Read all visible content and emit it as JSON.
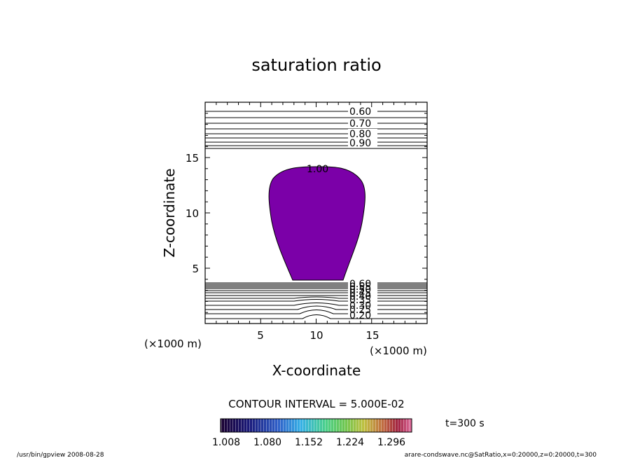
{
  "chart_data": {
    "type": "contour",
    "title": "saturation ratio",
    "xlabel": "X-coordinate",
    "ylabel": "Z-coordinate",
    "x_unit": "(×1000 m)",
    "y_unit": "(×1000 m)",
    "xlim": [
      0,
      20
    ],
    "ylim": [
      0,
      20
    ],
    "x_ticks": [
      5,
      10,
      15
    ],
    "y_ticks": [
      5,
      10,
      15
    ],
    "shaded_region_label": "1.00",
    "contour_labels_upper": [
      "0.60",
      "0.70",
      "0.80",
      "0.90"
    ],
    "contour_labels_lower": [
      "0.60",
      "0.55",
      "0.50",
      "0.45",
      "0.40",
      "0.35",
      "0.30",
      "0.25",
      "0.20"
    ],
    "contour_interval_text": "CONTOUR INTERVAL = 5.000E-02",
    "colorbar_ticks": [
      "1.008",
      "1.080",
      "1.152",
      "1.224",
      "1.296"
    ],
    "time_label": "t=300 s",
    "fill_color": "#7b00a8",
    "colorbar_colors": [
      "#1a0030",
      "#1a1a7a",
      "#2f5fc8",
      "#35b0e6",
      "#4ad08a",
      "#6ec650",
      "#c0c040",
      "#c06a40",
      "#a02040",
      "#e070a0"
    ]
  },
  "footer": {
    "left": "/usr/bin/gpview   2008-08-28",
    "right": "arare-condswave.nc@SatRatio,x=0:20000,z=0:20000,t=300"
  }
}
